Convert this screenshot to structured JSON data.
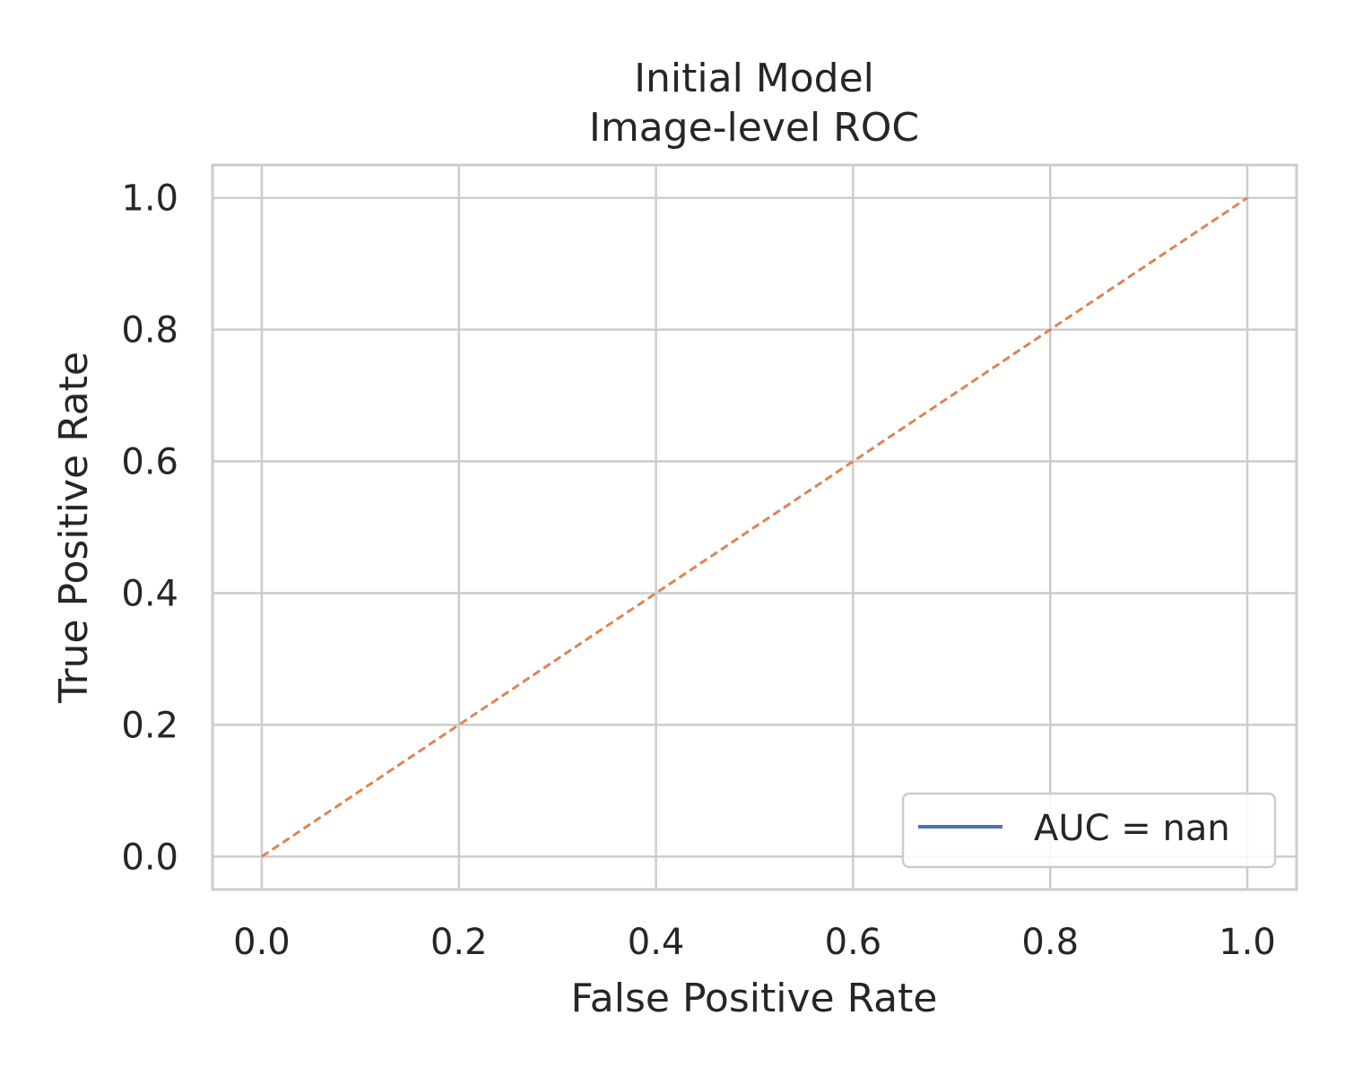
{
  "chart_data": {
    "type": "line",
    "title": [
      "Initial Model",
      "Image-level ROC"
    ],
    "xlabel": "False Positive Rate",
    "ylabel": "True Positive Rate",
    "xlim": [
      -0.05,
      1.05
    ],
    "ylim": [
      -0.05,
      1.05
    ],
    "xticks": [
      0.0,
      0.2,
      0.4,
      0.6,
      0.8,
      1.0
    ],
    "xtick_labels": [
      "0.0",
      "0.2",
      "0.4",
      "0.6",
      "0.8",
      "1.0"
    ],
    "yticks": [
      0.0,
      0.2,
      0.4,
      0.6,
      0.8,
      1.0
    ],
    "ytick_labels": [
      "0.0",
      "0.2",
      "0.4",
      "0.6",
      "0.8",
      "1.0"
    ],
    "grid": true,
    "legend_position": "lower-right",
    "series": [
      {
        "name": "AUC = nan",
        "x": [],
        "y": [],
        "color": "#4c72b0",
        "style": "solid"
      }
    ],
    "reference_line": {
      "x": [
        0,
        1
      ],
      "y": [
        0,
        1
      ],
      "color": "#dd8452",
      "style": "dashed"
    }
  }
}
